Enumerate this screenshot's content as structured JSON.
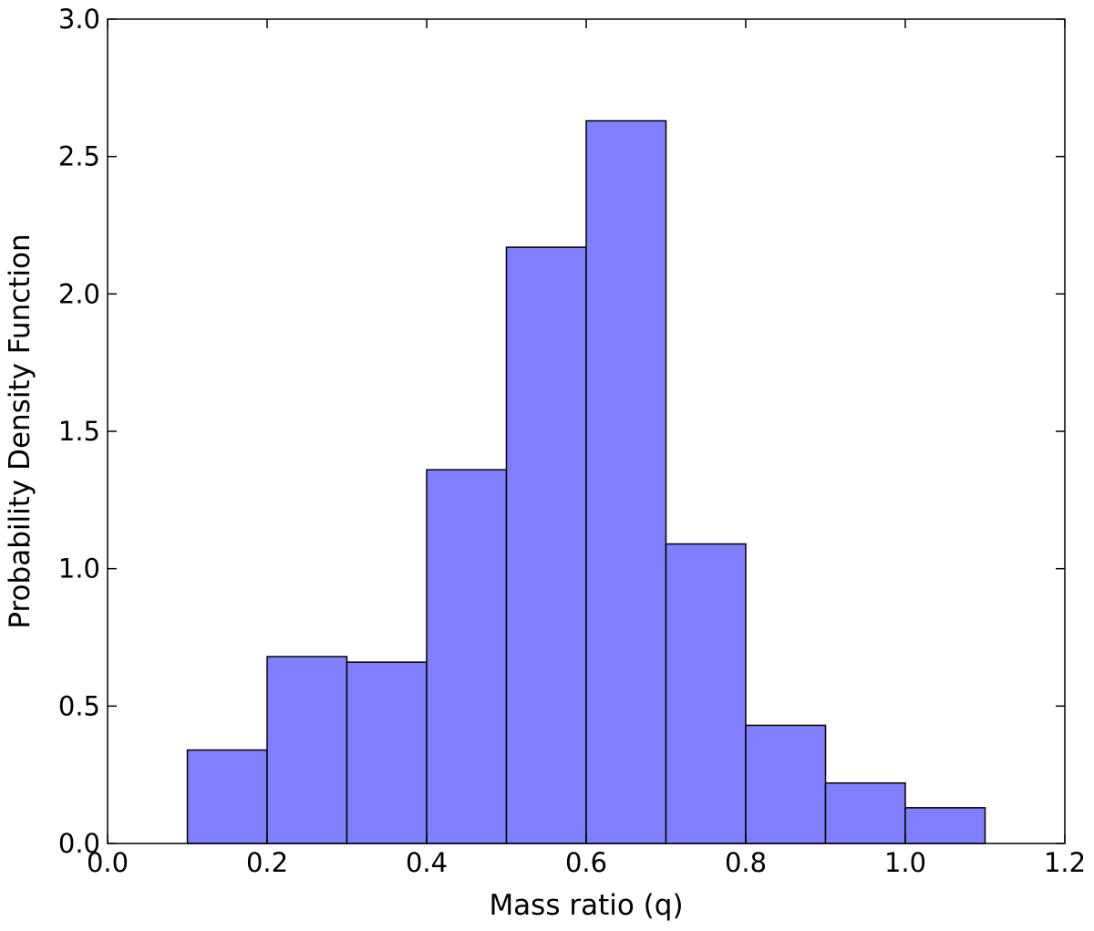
{
  "chart_data": {
    "type": "bar",
    "subtype": "histogram",
    "title": "",
    "xlabel": "Mass ratio (q)",
    "ylabel": "Probability Density Function",
    "xlim": [
      0.0,
      1.2
    ],
    "ylim": [
      0.0,
      3.0
    ],
    "x_ticks": [
      0.0,
      0.2,
      0.4,
      0.6,
      0.8,
      1.0,
      1.2
    ],
    "x_tick_labels": [
      "0.0",
      "0.2",
      "0.4",
      "0.6",
      "0.8",
      "1.0",
      "1.2"
    ],
    "y_ticks": [
      0.0,
      0.5,
      1.0,
      1.5,
      2.0,
      2.5,
      3.0
    ],
    "y_tick_labels": [
      "0.0",
      "0.5",
      "1.0",
      "1.5",
      "2.0",
      "2.5",
      "3.0"
    ],
    "bin_edges": [
      0.1,
      0.2,
      0.3,
      0.4,
      0.5,
      0.6,
      0.7,
      0.8,
      0.9,
      1.0,
      1.1
    ],
    "values": [
      0.34,
      0.68,
      0.66,
      1.36,
      2.17,
      2.63,
      1.09,
      0.43,
      0.22,
      0.13
    ],
    "grid": false,
    "legend": "none",
    "colors": {
      "bar_fill": "#8080ff",
      "bar_edge": "#000000",
      "axes": "#000000",
      "background": "#ffffff"
    }
  }
}
